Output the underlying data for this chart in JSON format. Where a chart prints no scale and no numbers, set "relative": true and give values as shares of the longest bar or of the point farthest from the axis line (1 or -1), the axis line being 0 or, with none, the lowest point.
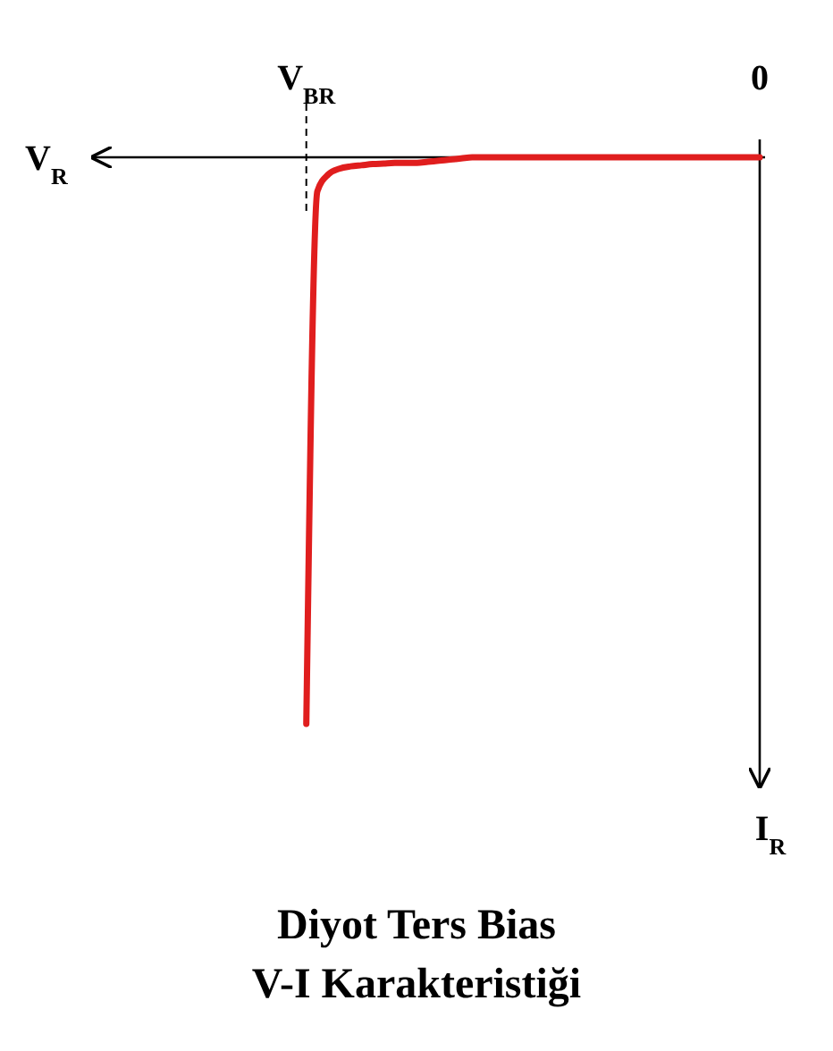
{
  "chart_data": {
    "type": "line",
    "title": "Diyot Ters Bias V-I Karakteristiği",
    "xlabel": "V$_{R}$",
    "ylabel": "I$_{R}$",
    "relative": true,
    "line_style": "solid",
    "categories": [
      null,
      null,
      null,
      null,
      null,
      null,
      null,
      null,
      null,
      null,
      null,
      null,
      null,
      null,
      null,
      null,
      null,
      null,
      "V$_{BR}$",
      null,
      null,
      null,
      null,
      null,
      null,
      null,
      null,
      null,
      null,
      null,
      null,
      null,
      null,
      null,
      null,
      null,
      null,
      null,
      null,
      null,
      null,
      null,
      null,
      null,
      null,
      null,
      null,
      null,
      null,
      null,
      null,
      null,
      null,
      null,
      null,
      null,
      null,
      null,
      null,
      "0"
    ],
    "series": [
      {
        "color": "#e01e1e",
        "values": [
          null,
          null,
          null,
          null,
          null,
          null,
          null,
          null,
          null,
          null,
          null,
          null,
          null,
          null,
          null,
          null,
          null,
          null,
          -1,
          -0.06,
          -0.03,
          -0.02,
          -0.016,
          -0.014,
          -0.012,
          -0.011,
          -0.01,
          -0.01,
          -0.01,
          -0.008,
          -0.006,
          -0.004,
          -0.002,
          0,
          0,
          0,
          0,
          0,
          0,
          0,
          0,
          0,
          0,
          0,
          0,
          0,
          0,
          0,
          0,
          0,
          0,
          0,
          0,
          0,
          0,
          0,
          0,
          0,
          0,
          0
        ]
      }
    ]
  }
}
